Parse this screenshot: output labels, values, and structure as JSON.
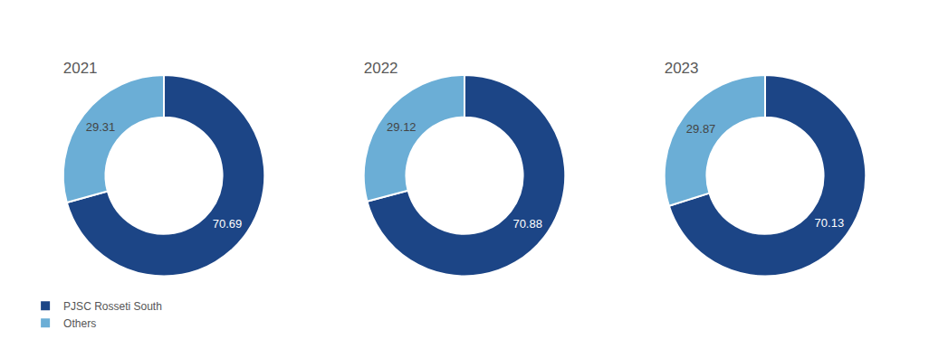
{
  "chart_data": [
    {
      "type": "pie",
      "title": "2021",
      "categories": [
        "PJSC Rosseti South",
        "Others"
      ],
      "values": [
        70.69,
        29.31
      ],
      "colors": [
        "#1c4586",
        "#6baed6"
      ],
      "data_labels": true,
      "legend": "bottom"
    },
    {
      "type": "pie",
      "title": "2022",
      "categories": [
        "PJSC Rosseti South",
        "Others"
      ],
      "values": [
        70.88,
        29.12
      ],
      "colors": [
        "#1c4586",
        "#6baed6"
      ],
      "data_labels": true,
      "legend": "bottom"
    },
    {
      "type": "pie",
      "title": "2023",
      "categories": [
        "PJSC Rosseti South",
        "Others"
      ],
      "values": [
        70.13,
        29.87
      ],
      "colors": [
        "#1c4586",
        "#6baed6"
      ],
      "data_labels": true,
      "legend": "bottom"
    }
  ]
}
